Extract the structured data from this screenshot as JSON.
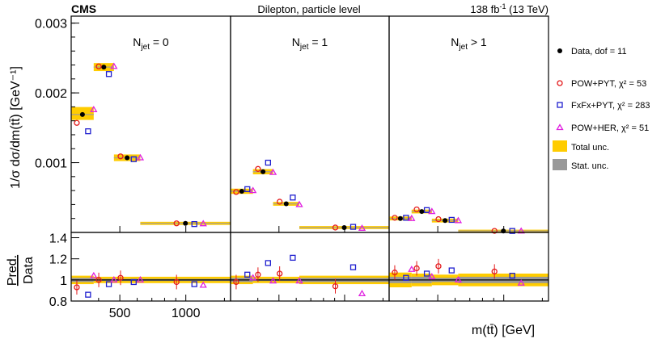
{
  "header": {
    "experiment": "CMS",
    "center": "Dilepton, particle level",
    "lumi": "138 fb",
    "lumi_sup": "-1",
    "lumi_tail": " (13 TeV)"
  },
  "colors": {
    "data": "#000000",
    "pow_pyt": "#e41a1c",
    "fxfx_pyt": "#1f1fcf",
    "pow_her": "#e020e0",
    "total_unc": "#ffcc00",
    "stat_unc": "#999999",
    "line": "#b5a77a"
  },
  "chart_data": {
    "type": "scatter",
    "x_range": [
      300,
      1600
    ],
    "xlabel": "m(tt̄) [GeV]",
    "xticks": [
      {
        "value": 500,
        "label": "500"
      },
      {
        "value": 1000,
        "label": "1000"
      }
    ],
    "top_panel": {
      "ylabel": "1/σ dσ/dm(tt̄) [GeV⁻¹]",
      "ylim": [
        0,
        0.0031
      ],
      "yticks": [
        {
          "value": 0.001,
          "label": "0.001"
        },
        {
          "value": 0.002,
          "label": "0.002"
        },
        {
          "value": 0.003,
          "label": "0.003"
        }
      ]
    },
    "ratio_panel": {
      "ylabel_num": "Pred.",
      "ylabel_den": "Data",
      "ylim": [
        0.8,
        1.45
      ],
      "yticks": [
        {
          "value": 0.8,
          "label": "0.8"
        },
        {
          "value": 1.0,
          "label": "1"
        },
        {
          "value": 1.2,
          "label": "1.2"
        },
        {
          "value": 1.4,
          "label": "1.4"
        }
      ]
    },
    "legend": [
      {
        "key": "data",
        "label": "Data, dof = 11"
      },
      {
        "key": "pow_pyt",
        "label": "POW+PYT, χ² = 53"
      },
      {
        "key": "fxfx_pyt",
        "label": "FxFx+PYT, χ² = 283"
      },
      {
        "key": "pow_her",
        "label": "POW+HER, χ² = 51"
      },
      {
        "key": "total_unc",
        "label": "Total unc."
      },
      {
        "key": "stat_unc",
        "label": "Stat. unc."
      }
    ],
    "panels": [
      {
        "label_main": "N",
        "label_sub": "jet",
        "label_tail": " = 0",
        "bins": [
          {
            "lo": 300,
            "hi": 380,
            "data": 0.00169,
            "pow_pyt": 0.00157,
            "fxfx_pyt": 0.00145,
            "pow_her": 0.00176,
            "tot_lo": 0.00163,
            "tot_hi": 0.00178,
            "r_pow_pyt": 0.93,
            "r_fxfx_pyt": 0.86,
            "r_pow_her": 1.04,
            "rtot": 0.04,
            "rstat": 0.02
          },
          {
            "lo": 380,
            "hi": 470,
            "data": 0.00237,
            "pow_pyt": 0.00238,
            "fxfx_pyt": 0.00227,
            "pow_her": 0.00238,
            "tot_lo": 0.00233,
            "tot_hi": 0.00241,
            "r_pow_pyt": 1.0,
            "r_fxfx_pyt": 0.96,
            "r_pow_her": 1.0,
            "rtot": 0.03,
            "rstat": 0.01
          },
          {
            "lo": 470,
            "hi": 620,
            "data": 0.00107,
            "pow_pyt": 0.00109,
            "fxfx_pyt": 0.00105,
            "pow_her": 0.00107,
            "tot_lo": 0.00104,
            "tot_hi": 0.0011,
            "r_pow_pyt": 1.02,
            "r_fxfx_pyt": 0.98,
            "r_pow_her": 1.0,
            "rtot": 0.03,
            "rstat": 0.01
          },
          {
            "lo": 620,
            "hi": 1600,
            "data": 0.00013,
            "pow_pyt": 0.00013,
            "fxfx_pyt": 0.00012,
            "pow_her": 0.000125,
            "tot_lo": 0.000125,
            "tot_hi": 0.000135,
            "r_pow_pyt": 0.98,
            "r_fxfx_pyt": 0.96,
            "r_pow_her": 0.95,
            "rtot": 0.03,
            "rstat": 0.01
          }
        ]
      },
      {
        "label_main": "N",
        "label_sub": "jet",
        "label_tail": " = 1",
        "bins": [
          {
            "lo": 300,
            "hi": 380,
            "data": 0.00059,
            "pow_pyt": 0.00058,
            "fxfx_pyt": 0.00062,
            "pow_her": 0.0006,
            "tot_lo": 0.00057,
            "tot_hi": 0.00061,
            "r_pow_pyt": 0.98,
            "r_fxfx_pyt": 1.05,
            "r_pow_her": 1.02,
            "rtot": 0.04,
            "rstat": 0.02
          },
          {
            "lo": 380,
            "hi": 470,
            "data": 0.00087,
            "pow_pyt": 0.00091,
            "fxfx_pyt": 0.001,
            "pow_her": 0.00086,
            "tot_lo": 0.00085,
            "tot_hi": 0.00089,
            "r_pow_pyt": 1.05,
            "r_fxfx_pyt": 1.16,
            "r_pow_her": 0.99,
            "rtot": 0.03,
            "rstat": 0.01
          },
          {
            "lo": 470,
            "hi": 620,
            "data": 0.00041,
            "pow_pyt": 0.00044,
            "fxfx_pyt": 0.0005,
            "pow_her": 0.0004,
            "tot_lo": 0.0004,
            "tot_hi": 0.00042,
            "r_pow_pyt": 1.06,
            "r_fxfx_pyt": 1.21,
            "r_pow_her": 0.99,
            "rtot": 0.03,
            "rstat": 0.01
          },
          {
            "lo": 620,
            "hi": 1600,
            "data": 7e-05,
            "pow_pyt": 7e-05,
            "fxfx_pyt": 8e-05,
            "pow_her": 6e-05,
            "tot_lo": 6.6e-05,
            "tot_hi": 7.4e-05,
            "r_pow_pyt": 0.94,
            "r_fxfx_pyt": 1.12,
            "r_pow_her": 0.87,
            "rtot": 0.04,
            "rstat": 0.02
          }
        ]
      },
      {
        "label_main": "N",
        "label_sub": "jet",
        "label_tail": " > 1",
        "bins": [
          {
            "lo": 300,
            "hi": 380,
            "data": 0.0002,
            "pow_pyt": 0.00021,
            "fxfx_pyt": 0.00021,
            "pow_her": 0.0002,
            "tot_lo": 0.00019,
            "tot_hi": 0.00021,
            "r_pow_pyt": 1.07,
            "r_fxfx_pyt": 1.02,
            "r_pow_her": 1.1,
            "rtot": 0.07,
            "rstat": 0.03
          },
          {
            "lo": 380,
            "hi": 470,
            "data": 0.0003,
            "pow_pyt": 0.00033,
            "fxfx_pyt": 0.00032,
            "pow_her": 0.0003,
            "tot_lo": 0.00029,
            "tot_hi": 0.00031,
            "r_pow_pyt": 1.11,
            "r_fxfx_pyt": 1.06,
            "r_pow_her": 1.03,
            "rtot": 0.06,
            "rstat": 0.03
          },
          {
            "lo": 470,
            "hi": 620,
            "data": 0.00017,
            "pow_pyt": 0.00019,
            "fxfx_pyt": 0.00018,
            "pow_her": 0.00017,
            "tot_lo": 0.00016,
            "tot_hi": 0.00018,
            "r_pow_pyt": 1.13,
            "r_fxfx_pyt": 1.09,
            "r_pow_her": 1.0,
            "rtot": 0.05,
            "rstat": 0.02
          },
          {
            "lo": 620,
            "hi": 1600,
            "data": 2e-05,
            "pow_pyt": 2.2e-05,
            "fxfx_pyt": 2.1e-05,
            "pow_her": 2e-05,
            "tot_lo": 1.8e-05,
            "tot_hi": 2.2e-05,
            "r_pow_pyt": 1.08,
            "r_fxfx_pyt": 1.04,
            "r_pow_her": 0.97,
            "rtot": 0.06,
            "rstat": 0.03
          }
        ]
      }
    ]
  }
}
